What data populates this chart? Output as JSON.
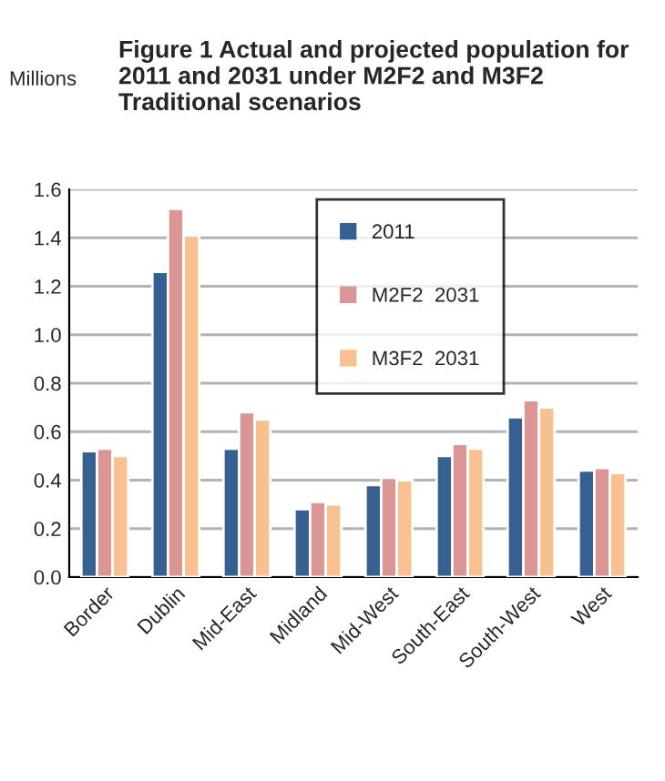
{
  "chart_data": {
    "type": "bar",
    "title": "Figure 1 Actual and projected population for 2011 and 2031 under M2F2 and M3F2 Traditional scenarios",
    "ylabel": "Millions",
    "categories": [
      "Border",
      "Dublin",
      "Mid-East",
      "Midland",
      "Mid-West",
      "South-East",
      "South-West",
      "West"
    ],
    "series": [
      {
        "name": "2011",
        "color": "#376092",
        "values": [
          0.52,
          1.26,
          0.53,
          0.28,
          0.38,
          0.5,
          0.66,
          0.44
        ]
      },
      {
        "name": "M2F2  2031",
        "color": "#d99694",
        "values": [
          0.53,
          1.52,
          0.68,
          0.31,
          0.41,
          0.55,
          0.73,
          0.45
        ]
      },
      {
        "name": "M3F2  2031",
        "color": "#fac090",
        "values": [
          0.5,
          1.41,
          0.65,
          0.3,
          0.4,
          0.53,
          0.7,
          0.43
        ]
      }
    ],
    "ylim": [
      0,
      1.6
    ],
    "yticks": [
      {
        "value": 0,
        "label": "0.0"
      },
      {
        "value": 0.2,
        "label": "0.2"
      },
      {
        "value": 0.4,
        "label": "0.4"
      },
      {
        "value": 0.6,
        "label": "0.6"
      },
      {
        "value": 0.8,
        "label": "0.8"
      },
      {
        "value": 1.0,
        "label": "1.0"
      },
      {
        "value": 1.2,
        "label": "1.2"
      },
      {
        "value": 1.4,
        "label": "1.4"
      },
      {
        "value": 1.6,
        "label": "1.6"
      }
    ],
    "grid": "y",
    "legend": "top right"
  }
}
